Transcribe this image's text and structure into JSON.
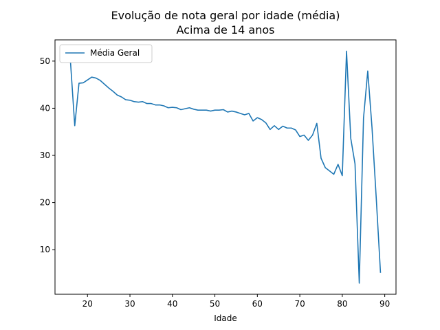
{
  "chart_data": {
    "type": "line",
    "title": "Evolução de nota geral por idade (média)",
    "subtitle": "Acima de 14 anos",
    "xlabel": "Idade",
    "ylabel": "",
    "xlim": [
      12.35,
      92.65
    ],
    "ylim": [
      0.55,
      54.5
    ],
    "xticks": [
      20,
      30,
      40,
      50,
      60,
      70,
      80,
      90
    ],
    "yticks": [
      10,
      20,
      30,
      40,
      50
    ],
    "grid": false,
    "legend_position": "top-left",
    "series": [
      {
        "name": "Média Geral",
        "color": "#1f77b4",
        "x": [
          16,
          17,
          18,
          19,
          20,
          21,
          22,
          23,
          24,
          25,
          26,
          27,
          28,
          29,
          30,
          31,
          32,
          33,
          34,
          35,
          36,
          37,
          38,
          39,
          40,
          41,
          42,
          43,
          44,
          45,
          46,
          47,
          48,
          49,
          50,
          51,
          52,
          53,
          54,
          55,
          56,
          57,
          58,
          59,
          60,
          61,
          62,
          63,
          64,
          65,
          66,
          67,
          68,
          69,
          70,
          71,
          72,
          73,
          74,
          75,
          76,
          77,
          78,
          79,
          80,
          81,
          82,
          83,
          84,
          85,
          86,
          87,
          88,
          89
        ],
        "y": [
          49.8,
          36.3,
          45.3,
          45.4,
          46.0,
          46.6,
          46.4,
          45.9,
          45.1,
          44.3,
          43.6,
          42.8,
          42.4,
          41.8,
          41.7,
          41.4,
          41.3,
          41.4,
          41.0,
          41.0,
          40.7,
          40.7,
          40.5,
          40.1,
          40.2,
          40.1,
          39.7,
          39.9,
          40.1,
          39.8,
          39.6,
          39.6,
          39.6,
          39.4,
          39.6,
          39.6,
          39.7,
          39.2,
          39.4,
          39.2,
          38.9,
          38.6,
          38.9,
          37.3,
          38.0,
          37.6,
          36.9,
          35.5,
          36.3,
          35.5,
          36.2,
          35.8,
          35.8,
          35.4,
          34.0,
          34.3,
          33.2,
          34.3,
          36.8,
          29.4,
          27.4,
          26.7,
          26.0,
          28.1,
          25.7,
          52.1,
          33.6,
          28.2,
          2.9,
          37.9,
          47.9,
          35.9,
          20.9,
          5.1
        ]
      }
    ]
  }
}
